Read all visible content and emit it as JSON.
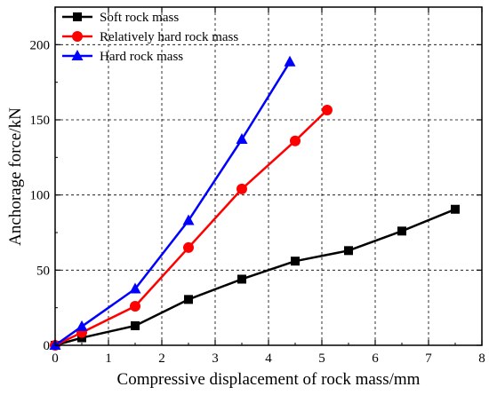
{
  "chart_data": {
    "type": "line",
    "xlabel": "Compressive displacement of rock mass/mm",
    "ylabel": "Anchorage force/kN",
    "xlim": [
      0,
      8
    ],
    "ylim": [
      0,
      225
    ],
    "xticks": [
      "0",
      "1",
      "2",
      "3",
      "4",
      "5",
      "6",
      "7",
      "8"
    ],
    "yticks": [
      "0",
      "50",
      "100",
      "150",
      "200"
    ],
    "grid": "dashed",
    "legend_position": "top-left",
    "series": [
      {
        "name": "Soft rock mass",
        "color": "#000000",
        "marker": "square",
        "points": [
          [
            0,
            0
          ],
          [
            0.5,
            5
          ],
          [
            1.5,
            13
          ],
          [
            2.5,
            30.5
          ],
          [
            3.5,
            44
          ],
          [
            4.5,
            56
          ],
          [
            5.5,
            63
          ],
          [
            6.5,
            76
          ],
          [
            7.5,
            90.5
          ]
        ]
      },
      {
        "name": "Relatively hard rock mass",
        "color": "#ff0000",
        "marker": "circle",
        "points": [
          [
            0,
            0
          ],
          [
            0.5,
            8.5
          ],
          [
            1.5,
            26
          ],
          [
            2.5,
            65
          ],
          [
            3.5,
            104
          ],
          [
            4.5,
            136
          ],
          [
            5.1,
            156.5
          ]
        ]
      },
      {
        "name": "Hard rock mass",
        "color": "#0000ff",
        "marker": "triangle",
        "points": [
          [
            0,
            0
          ],
          [
            0.5,
            12.5
          ],
          [
            1.5,
            37.5
          ],
          [
            2.5,
            83
          ],
          [
            3.5,
            137
          ],
          [
            4.4,
            188.5
          ]
        ]
      }
    ]
  }
}
